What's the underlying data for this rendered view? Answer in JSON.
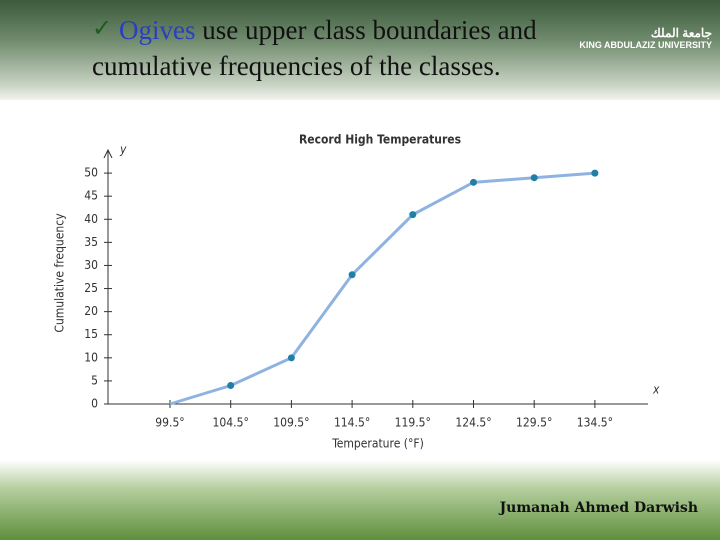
{
  "slide": {
    "bullet_highlight": "Ogives",
    "bullet_rest": "use upper class boundaries and cumulative frequencies of the classes.",
    "logo_arabic": "جامعة الملك",
    "logo_english": "KING ABDULAZIZ UNIVERSITY",
    "author": "Jumanah Ahmed Darwish"
  },
  "chart_data": {
    "type": "line",
    "title": "Record High Temperatures",
    "x_label": "Temperature (°F)",
    "y_label": "Cumulative frequency",
    "x_axis_letter": "x",
    "y_axis_letter": "y",
    "categories": [
      "99.5°",
      "104.5°",
      "109.5°",
      "114.5°",
      "119.5°",
      "124.5°",
      "129.5°",
      "134.5°"
    ],
    "values": [
      0,
      4,
      10,
      28,
      41,
      48,
      49,
      50
    ],
    "color": "#8fb3e0",
    "marker_color": "#1f7fa8",
    "ylim": [
      0,
      55
    ],
    "yticks": [
      0,
      5,
      10,
      15,
      20,
      25,
      30,
      35,
      40,
      45,
      50
    ]
  }
}
